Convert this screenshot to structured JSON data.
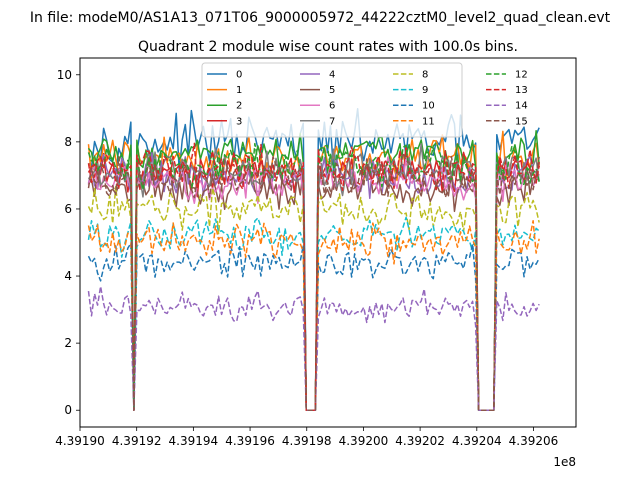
{
  "figure": {
    "suptitle": "In file: modeM0/AS1A13_071T06_9000005972_44222cztM0_level2_quad_clean.evt",
    "offset_text": "1e8"
  },
  "chart_data": {
    "type": "line",
    "title": "Quadrant 2 module wise count rates with 100.0s bins.",
    "xlabel": "",
    "ylabel": "",
    "xlim": [
      4.3919,
      4.392075
    ],
    "ylim": [
      -0.5,
      10.5
    ],
    "x_ticks": [
      4.3919,
      4.39192,
      4.39194,
      4.39196,
      4.39198,
      4.392,
      4.39202,
      4.39204,
      4.39206
    ],
    "x_tick_labels": [
      "4.39190",
      "4.39192",
      "4.39194",
      "4.39196",
      "4.39198",
      "4.39200",
      "4.39202",
      "4.39204",
      "4.39206"
    ],
    "y_ticks": [
      0,
      2,
      4,
      6,
      8,
      10
    ],
    "y_tick_labels": [
      "0",
      "2",
      "4",
      "6",
      "8",
      "10"
    ],
    "grid": false,
    "legend": {
      "placement": "top-center",
      "columns": 4
    },
    "x_range": [
      4.391903,
      4.392062
    ],
    "gaps": [
      {
        "start": 4.391919,
        "end": 4.39192
      },
      {
        "start": 4.391979,
        "end": 4.391984
      },
      {
        "start": 4.39204,
        "end": 4.392046
      }
    ],
    "series": [
      {
        "name": "0",
        "mean": 8.0,
        "noise": 0.35,
        "color": "#1f77b4",
        "dashed": false
      },
      {
        "name": "1",
        "mean": 7.5,
        "noise": 0.3,
        "color": "#ff7f0e",
        "dashed": false
      },
      {
        "name": "2",
        "mean": 7.6,
        "noise": 0.3,
        "color": "#2ca02c",
        "dashed": false
      },
      {
        "name": "3",
        "mean": 7.1,
        "noise": 0.3,
        "color": "#d62728",
        "dashed": false
      },
      {
        "name": "4",
        "mean": 7.0,
        "noise": 0.3,
        "color": "#9467bd",
        "dashed": false
      },
      {
        "name": "5",
        "mean": 6.6,
        "noise": 0.3,
        "color": "#8c564b",
        "dashed": false
      },
      {
        "name": "6",
        "mean": 6.8,
        "noise": 0.3,
        "color": "#e377c2",
        "dashed": false
      },
      {
        "name": "7",
        "mean": 7.2,
        "noise": 0.3,
        "color": "#7f7f7f",
        "dashed": false
      },
      {
        "name": "8",
        "mean": 6.0,
        "noise": 0.3,
        "color": "#bcbd22",
        "dashed": true
      },
      {
        "name": "9",
        "mean": 5.2,
        "noise": 0.25,
        "color": "#17becf",
        "dashed": true
      },
      {
        "name": "10",
        "mean": 4.4,
        "noise": 0.25,
        "color": "#1f77b4",
        "dashed": true
      },
      {
        "name": "11",
        "mean": 5.0,
        "noise": 0.25,
        "color": "#ff7f0e",
        "dashed": true
      },
      {
        "name": "12",
        "mean": 7.3,
        "noise": 0.3,
        "color": "#2ca02c",
        "dashed": true
      },
      {
        "name": "13",
        "mean": 7.2,
        "noise": 0.3,
        "color": "#d62728",
        "dashed": true
      },
      {
        "name": "14",
        "mean": 3.1,
        "noise": 0.25,
        "color": "#9467bd",
        "dashed": true
      },
      {
        "name": "15",
        "mean": 6.9,
        "noise": 0.3,
        "color": "#8c564b",
        "dashed": true
      }
    ]
  }
}
